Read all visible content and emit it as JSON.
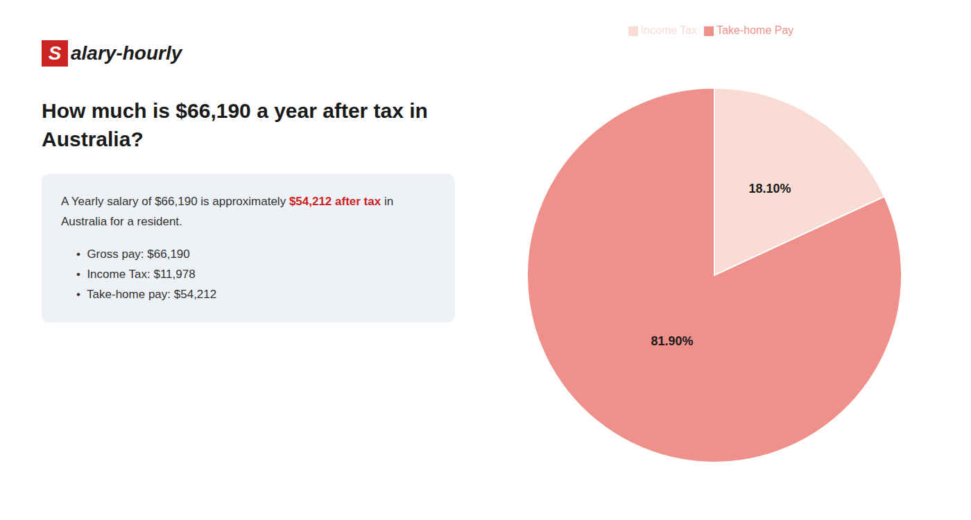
{
  "chart_data": {
    "type": "pie",
    "title": "How much is $66,190 a year after tax in Australia?",
    "categories": [
      "Income Tax",
      "Take-home Pay"
    ],
    "values": [
      18.1,
      81.9
    ],
    "value_labels": [
      "18.10%",
      "81.90%"
    ],
    "colors": [
      "#f9ddd5",
      "#f0908a"
    ],
    "legend": "top",
    "data_labels": true,
    "annotations": [
      {
        "text": "Salary-hourly",
        "color": "#cc2222"
      },
      {
        "text": "A Yearly salary of $66,190 is approximately "
      },
      {
        "text": "$54,212 after tax",
        "color": "#cc2222"
      },
      {
        "text": " in Australia for a resident."
      },
      {
        "text": "•  Gross pay: $66,190"
      },
      {
        "text": "•  Income Tax: $11,978"
      },
      {
        "text": "•  Take-home pay: $54,212"
      }
    ]
  }
}
